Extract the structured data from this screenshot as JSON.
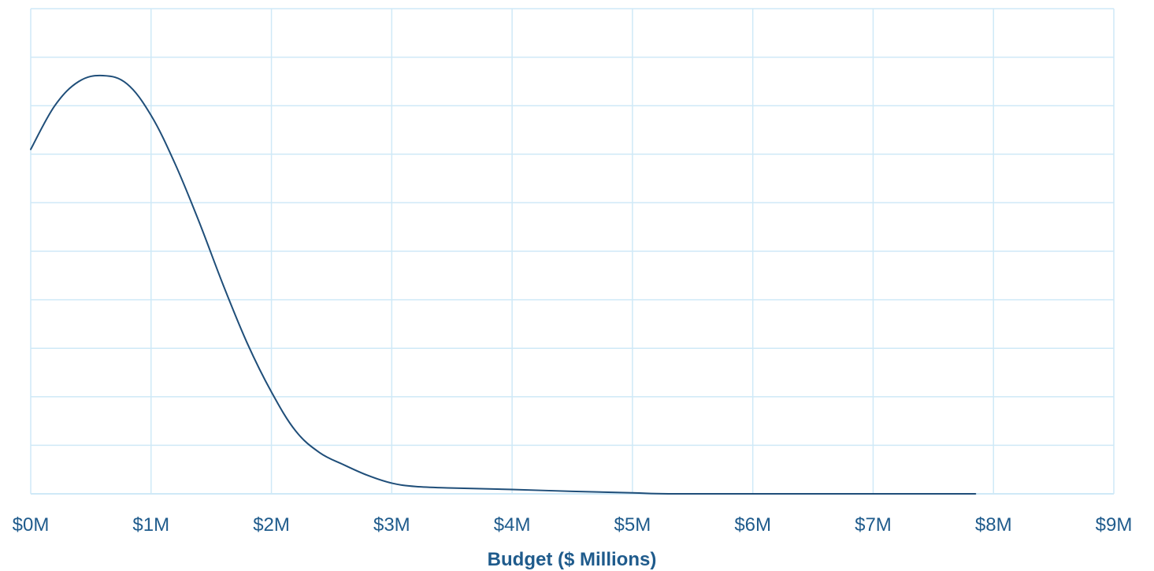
{
  "chart_data": {
    "type": "line",
    "title": "",
    "xlabel": "Budget ($ Millions)",
    "ylabel": "",
    "xlim": [
      0,
      9
    ],
    "ylim": [
      0,
      10
    ],
    "grid": true,
    "x_ticks": [
      0,
      1,
      2,
      3,
      4,
      5,
      6,
      7,
      8,
      9
    ],
    "x_tick_labels": [
      "$0M",
      "$1M",
      "$2M",
      "$3M",
      "$4M",
      "$5M",
      "$6M",
      "$7M",
      "$8M",
      "$9M"
    ],
    "y_ticks": [
      0,
      1,
      2,
      3,
      4,
      5,
      6,
      7,
      8,
      9,
      10
    ],
    "y_tick_labels": [],
    "series": [
      {
        "color": "#1f4e79",
        "x": [
          0,
          0.2,
          0.4,
          0.6,
          0.8,
          1.0,
          1.2,
          1.4,
          1.6,
          1.8,
          2.0,
          2.2,
          2.4,
          2.6,
          2.8,
          3.0,
          3.2,
          3.5,
          4.0,
          4.5,
          5.0,
          5.3,
          6.0,
          7.0,
          7.85
        ],
        "y": [
          7.1,
          8.0,
          8.5,
          8.62,
          8.45,
          7.8,
          6.8,
          5.6,
          4.3,
          3.1,
          2.1,
          1.3,
          0.85,
          0.6,
          0.38,
          0.22,
          0.15,
          0.12,
          0.09,
          0.05,
          0.02,
          0.0,
          0.0,
          0.0,
          0.0
        ]
      }
    ]
  }
}
